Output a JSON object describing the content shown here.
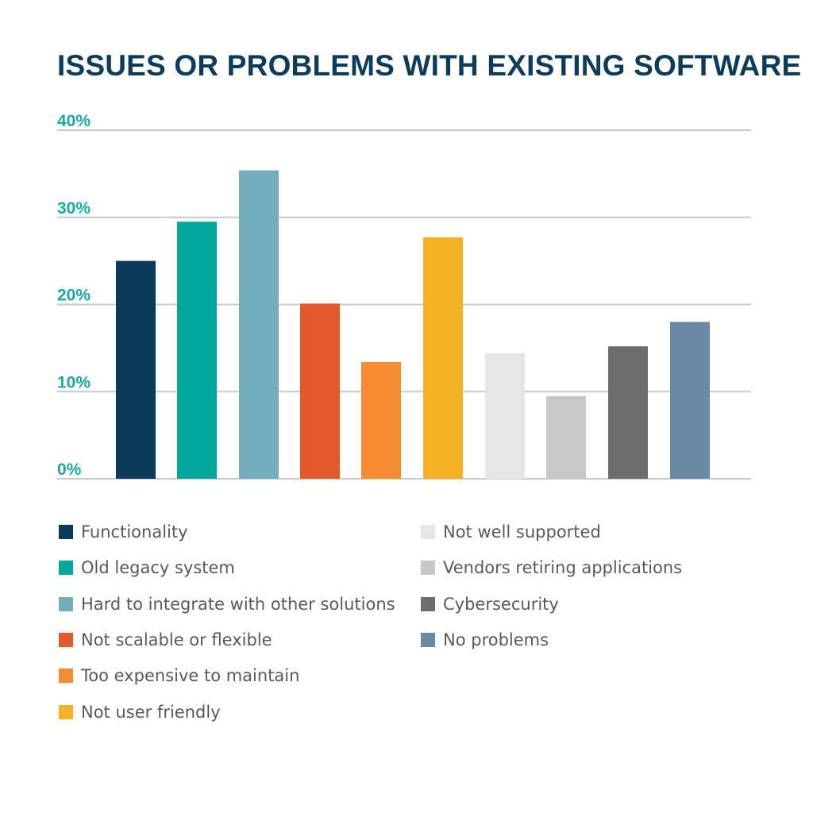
{
  "chart_data": {
    "type": "bar",
    "title": "ISSUES OR PROBLEMS WITH EXISTING SOFTWARE",
    "xlabel": "",
    "ylabel": "",
    "ylim": [
      0,
      40
    ],
    "yticks": [
      "0%",
      "10%",
      "20%",
      "30%",
      "40%"
    ],
    "ytick_values": [
      0,
      10,
      20,
      30,
      40
    ],
    "grid": true,
    "legend_position": "bottom",
    "categories": [
      "Functionality",
      "Old legacy system",
      "Hard to integrate with other solutions",
      "Not scalable or flexible",
      "Too expensive to maintain",
      "Not user friendly",
      "Not well supported",
      "Vendors retiring applications",
      "Cybersecurity",
      "No problems"
    ],
    "values": [
      25,
      29.5,
      35.4,
      20.1,
      13.4,
      27.7,
      14.4,
      9.5,
      15.2,
      18
    ],
    "colors": [
      "#0a3a5a",
      "#00a79d",
      "#74adbd",
      "#e05a2b",
      "#f58c31",
      "#f6b223",
      "#e6e6ea",
      "#c8c8cb",
      "#6d6d71",
      "#6a8aa3"
    ],
    "title_color": "#0c3b5c",
    "tick_color": "#1aa99c"
  }
}
